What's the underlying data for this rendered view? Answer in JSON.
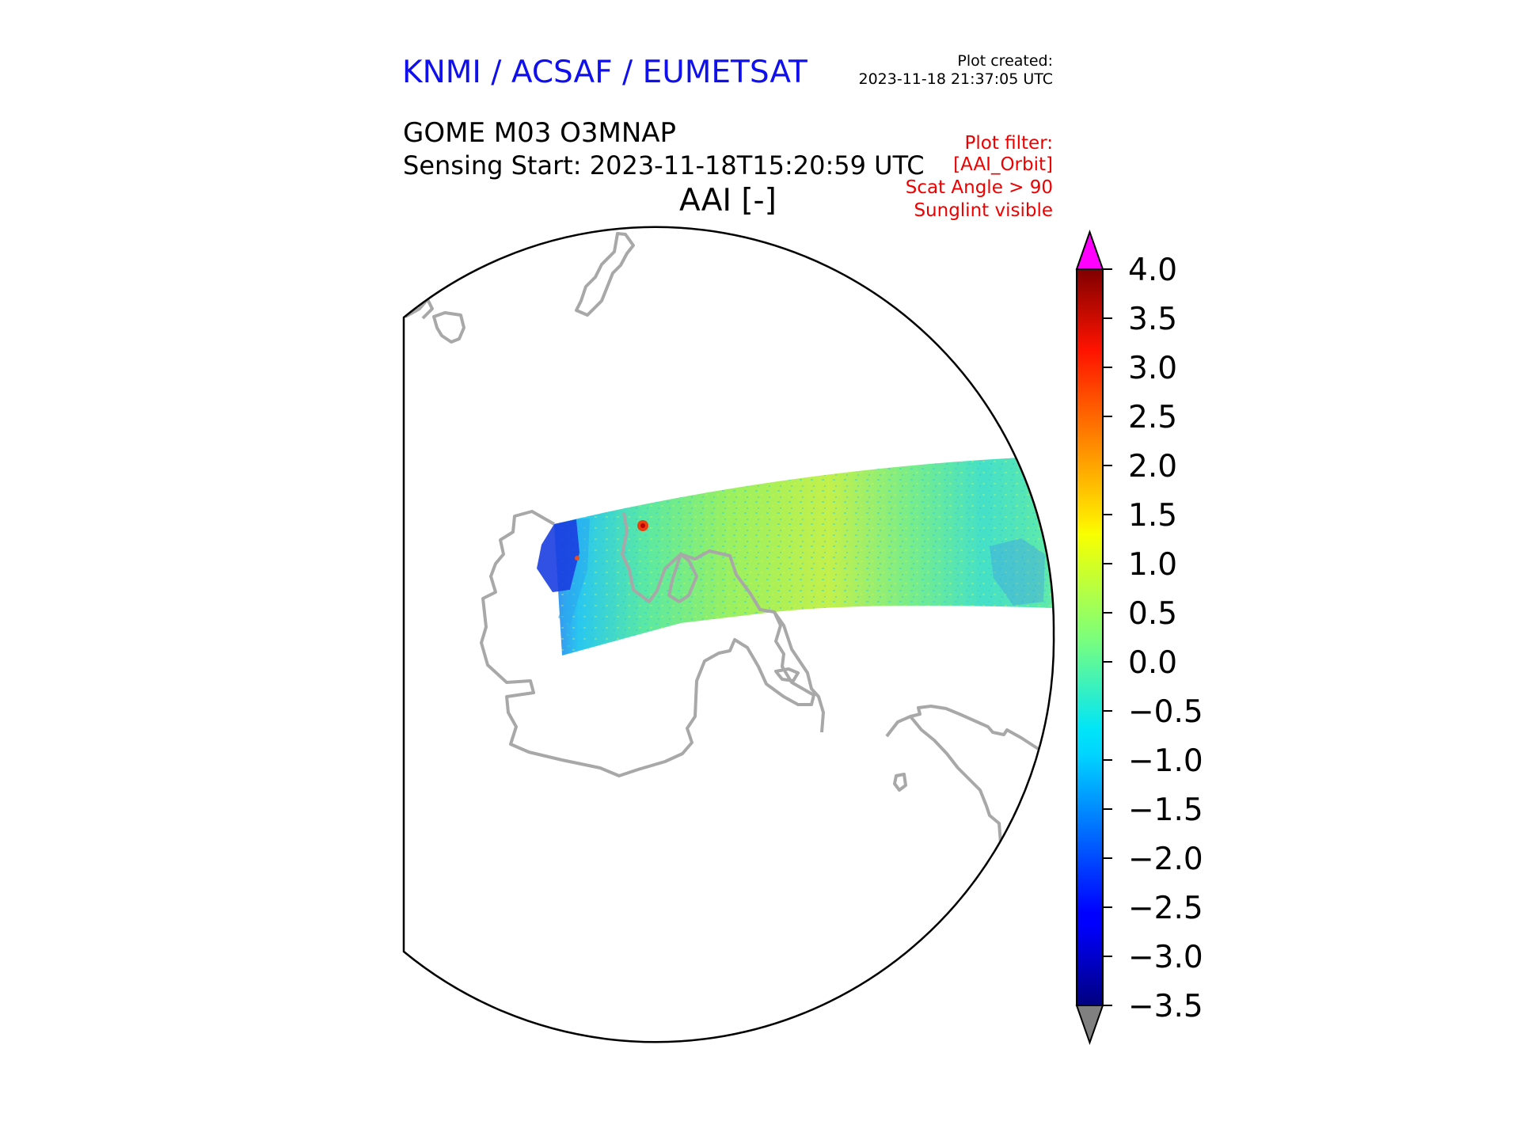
{
  "header": {
    "agency": "KNMI / ACSAF / EUMETSAT",
    "created_label": "Plot created:",
    "created_time": "2023-11-18 21:37:05 UTC",
    "product": "GOME M03 O3MNAP",
    "sensing_start": "Sensing Start: 2023-11-18T15:20:59 UTC",
    "variable": "AAI [-]"
  },
  "filter": {
    "label": "Plot filter:",
    "lines": [
      "[AAI_Orbit]",
      "Scat Angle > 90",
      "Sunglint visible"
    ]
  },
  "colors": {
    "title_blue": "#1010ee",
    "filter_red": "#ee0000",
    "coastline_gray": "#a8a8a8",
    "over_max": "#ff00ff",
    "under_min": "#808080"
  },
  "colorbar": {
    "min": -3.5,
    "max": 4.0,
    "ticks": [
      "4.0",
      "3.5",
      "3.0",
      "2.5",
      "2.0",
      "1.5",
      "1.0",
      "0.5",
      "0.0",
      "−0.5",
      "−1.0",
      "−1.5",
      "−2.0",
      "−2.5",
      "−3.0",
      "−3.5"
    ],
    "colormap": "jet",
    "extend": "both"
  },
  "swath": {
    "typical_value": -0.2,
    "hotspot_value": 3.3,
    "low_edge_value": -2.5
  }
}
